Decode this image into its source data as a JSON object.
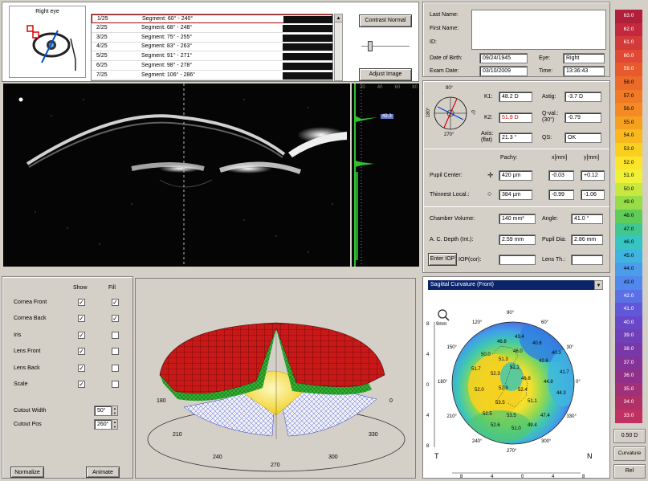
{
  "eye_panel": {
    "label": "Right eye"
  },
  "segments": [
    {
      "index": "1/25",
      "label": "Segment: 60° - 240°"
    },
    {
      "index": "2/25",
      "label": "Segment: 68° - 248°"
    },
    {
      "index": "3/25",
      "label": "Segment: 75° - 255°"
    },
    {
      "index": "4/25",
      "label": "Segment: 83° - 263°"
    },
    {
      "index": "5/25",
      "label": "Segment: 91° - 271°"
    },
    {
      "index": "6/25",
      "label": "Segment: 98° - 278°"
    },
    {
      "index": "7/25",
      "label": "Segment: 106° - 286°"
    }
  ],
  "buttons": {
    "contrast": "Contrast Normal",
    "adjust": "Adjust Image",
    "enter_iop": "Enter IOP",
    "normalize": "Normalize",
    "animate": "Animate"
  },
  "profile_scale": {
    "ticks": [
      "20",
      "40",
      "60",
      "80"
    ],
    "marker": "43.3"
  },
  "patient": {
    "last_name_label": "Last Name:",
    "first_name_label": "First Name:",
    "id_label": "ID:",
    "dob_label": "Date of Birth:",
    "dob": "09/24/1945",
    "eye_label": "Eye:",
    "eye": "Right",
    "exam_label": "Exam Date:",
    "exam": "03/10/2009",
    "time_label": "Time:",
    "time": "13:36:43"
  },
  "keratometry": {
    "k1_label": "K1:",
    "k1": "48.2 D",
    "astig_label": "Astig:",
    "astig": "-3.7 D",
    "k2_label": "K2:",
    "k2": "51.9 D",
    "qval_label": "Q-val.:",
    "qval_sub": "(30°)",
    "qval": "-0.79",
    "axis_label": "Axis:",
    "axis_sub": "(flat)",
    "axis": "21.3 °",
    "qs_label": "QS:",
    "qs": "OK",
    "dial_top": "90°",
    "dial_bottom": "270°",
    "dial_left": "180°",
    "dial_right": "0°"
  },
  "pachy": {
    "head_pachy": "Pachy:",
    "head_x": "x[mm]",
    "head_y": "y[mm]",
    "pupil_label": "Pupil Center:",
    "pupil_pachy": "420 µm",
    "pupil_x": "-0.03",
    "pupil_y": "+0.12",
    "thin_label": "Thinnest Local.:",
    "thin_pachy": "384 µm",
    "thin_x": "-0.99",
    "thin_y": "-1.06"
  },
  "chamber": {
    "volume_label": "Chamber Volume:",
    "volume": "140 mm³",
    "angle_label": "Angle:",
    "angle": "41.0 °",
    "depth_label": "A. C. Depth (Int.):",
    "depth": "2.59 mm",
    "pupil_dia_label": "Pupil Dia:",
    "pupil_dia": "2.86 mm",
    "iop_cor_label": "IOP(cor):",
    "lens_th_label": "Lens Th.:"
  },
  "display_options": {
    "show_label": "Show",
    "fill_label": "Fill",
    "rows": [
      {
        "label": "Cornea Front",
        "show": "✓",
        "fill": "✓"
      },
      {
        "label": "Cornea Back",
        "show": "✓",
        "fill": "✓"
      },
      {
        "label": "Iris",
        "show": "✓",
        "fill": ""
      },
      {
        "label": "Lens Front",
        "show": "✓",
        "fill": ""
      },
      {
        "label": "Lens Back",
        "show": "✓",
        "fill": ""
      },
      {
        "label": "Scale",
        "show": "✓",
        "fill": ""
      }
    ],
    "cutout_width_label": "Cutout Width",
    "cutout_width": "50°",
    "cutout_pos_label": "Cutout Pos",
    "cutout_pos": "260°"
  },
  "model3d": {
    "angles": [
      "180",
      "0",
      "210",
      "330",
      "240",
      "300",
      "270"
    ]
  },
  "map": {
    "dropdown": "Sagittal Curvature (Front)",
    "zoom_label": "9mm",
    "angle_labels": [
      "90°",
      "60°",
      "30°",
      "0°",
      "330°",
      "300°",
      "270°",
      "240°",
      "210°",
      "180°",
      "150°",
      "120°"
    ],
    "y_ticks": [
      "8",
      "4",
      "0",
      "4",
      "8"
    ],
    "x_ticks": [
      "8",
      "4",
      "0",
      "4",
      "8"
    ],
    "corner_t": "T",
    "corner_n": "N",
    "values": [
      "43.4",
      "46.8",
      "40.6",
      "46.0",
      "40.3",
      "50.0",
      "51.3",
      "42.6",
      "52.1",
      "51.7",
      "52.3",
      "41.7",
      "44.8",
      "46.8",
      "52.0",
      "52.9",
      "52.4",
      "44.3",
      "53.5",
      "51.1",
      "52.5",
      "53.5",
      "47.4",
      "52.6",
      "51.0",
      "49.4"
    ]
  },
  "color_scale": {
    "values": [
      "63.0",
      "62.0",
      "61.0",
      "60.0",
      "59.0",
      "58.0",
      "57.0",
      "56.0",
      "55.0",
      "54.0",
      "53.0",
      "52.0",
      "51.0",
      "50.0",
      "49.0",
      "48.0",
      "47.0",
      "46.0",
      "45.0",
      "44.0",
      "43.0",
      "42.0",
      "41.0",
      "40.0",
      "39.0",
      "38.0",
      "37.0",
      "36.0",
      "35.0",
      "34.0",
      "33.0"
    ],
    "colors": [
      "#b0203a",
      "#c4283e",
      "#d33a3a",
      "#e04a34",
      "#e85a2e",
      "#ec6a2a",
      "#f07a26",
      "#f48a24",
      "#f6a020",
      "#f8b81e",
      "#fad020",
      "#fce42a",
      "#f0f036",
      "#c8e840",
      "#98dc48",
      "#60cc58",
      "#40c890",
      "#38c4c0",
      "#40b4e0",
      "#4c9cec",
      "#5088ec",
      "#5a70e4",
      "#6058d8",
      "#6848c8",
      "#7040b8",
      "#7838a8",
      "#843498",
      "#903088",
      "#a03078",
      "#b03068",
      "#c03060"
    ],
    "step": "0.50 D",
    "mode": "Curvature",
    "rel": "Rel"
  }
}
